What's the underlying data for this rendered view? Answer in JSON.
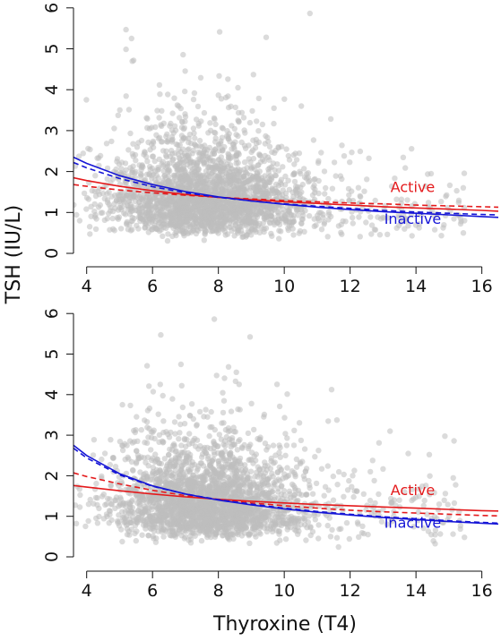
{
  "y_axis_label": "TSH (IU/L)",
  "x_axis_label": "Thyroxine (T4)",
  "chart_data": [
    {
      "type": "scatter",
      "panel": "top",
      "xlim": [
        3.6,
        16.5
      ],
      "ylim": [
        0,
        6.3
      ],
      "x_ticks": [
        "4",
        "6",
        "8",
        "10",
        "12",
        "14",
        "16"
      ],
      "y_ticks": [
        "0",
        "1",
        "2",
        "3",
        "4",
        "5",
        "6"
      ],
      "point_color": "#bdbdbd",
      "annotations": [
        {
          "text": "Active",
          "color": "#e41a1c",
          "x": 13.9,
          "y": 1.5
        },
        {
          "text": "Inactive",
          "color": "#1515d6",
          "x": 13.9,
          "y": 0.72
        }
      ],
      "series": [
        {
          "name": "Active",
          "color": "#e41a1c",
          "style": "solid",
          "x": [
            3.6,
            4,
            5,
            6,
            7,
            8,
            9,
            10,
            11,
            12,
            13,
            14,
            15,
            16,
            16.5
          ],
          "y": [
            1.85,
            1.78,
            1.64,
            1.53,
            1.44,
            1.37,
            1.31,
            1.26,
            1.22,
            1.18,
            1.14,
            1.11,
            1.08,
            1.05,
            1.03
          ]
        },
        {
          "name": "Active",
          "color": "#e41a1c",
          "style": "dashed",
          "x": [
            3.6,
            4,
            5,
            6,
            7,
            8,
            9,
            10,
            11,
            12,
            13,
            14,
            15,
            16,
            16.5
          ],
          "y": [
            1.68,
            1.64,
            1.55,
            1.48,
            1.42,
            1.37,
            1.33,
            1.29,
            1.26,
            1.23,
            1.21,
            1.18,
            1.16,
            1.14,
            1.13
          ]
        },
        {
          "name": "Inactive",
          "color": "#1515d6",
          "style": "solid",
          "x": [
            3.6,
            4,
            5,
            6,
            7,
            8,
            9,
            10,
            11,
            12,
            13,
            14,
            15,
            16,
            16.5
          ],
          "y": [
            2.35,
            2.2,
            1.9,
            1.68,
            1.51,
            1.38,
            1.28,
            1.2,
            1.13,
            1.07,
            1.02,
            0.98,
            0.94,
            0.9,
            0.88
          ]
        },
        {
          "name": "Inactive",
          "color": "#1515d6",
          "style": "dashed",
          "x": [
            3.6,
            4,
            5,
            6,
            7,
            8,
            9,
            10,
            11,
            12,
            13,
            14,
            15,
            16,
            16.5
          ],
          "y": [
            2.22,
            2.09,
            1.83,
            1.63,
            1.48,
            1.37,
            1.28,
            1.21,
            1.15,
            1.1,
            1.05,
            1.01,
            0.98,
            0.95,
            0.94
          ]
        }
      ]
    },
    {
      "type": "scatter",
      "panel": "bottom",
      "xlim": [
        3.6,
        16.5
      ],
      "ylim": [
        0,
        6.3
      ],
      "x_ticks": [
        "4",
        "6",
        "8",
        "10",
        "12",
        "14",
        "16"
      ],
      "y_ticks": [
        "0",
        "1",
        "2",
        "3",
        "4",
        "5",
        "6"
      ],
      "point_color": "#bdbdbd",
      "annotations": [
        {
          "text": "Active",
          "color": "#e41a1c",
          "x": 13.9,
          "y": 1.52
        },
        {
          "text": "Inactive",
          "color": "#1515d6",
          "x": 13.9,
          "y": 0.72
        }
      ],
      "series": [
        {
          "name": "Active",
          "color": "#e41a1c",
          "style": "solid",
          "x": [
            3.6,
            4,
            5,
            6,
            7,
            8,
            9,
            10,
            11,
            12,
            13,
            14,
            15,
            16,
            16.5
          ],
          "y": [
            1.76,
            1.72,
            1.63,
            1.55,
            1.48,
            1.42,
            1.37,
            1.33,
            1.29,
            1.26,
            1.23,
            1.2,
            1.17,
            1.14,
            1.13
          ]
        },
        {
          "name": "Active",
          "color": "#e41a1c",
          "style": "dashed",
          "x": [
            3.6,
            4,
            5,
            6,
            7,
            8,
            9,
            10,
            11,
            12,
            13,
            14,
            15,
            16,
            16.5
          ],
          "y": [
            2.07,
            1.98,
            1.8,
            1.64,
            1.51,
            1.41,
            1.33,
            1.26,
            1.2,
            1.15,
            1.11,
            1.08,
            1.05,
            1.02,
            1.01
          ]
        },
        {
          "name": "Inactive",
          "color": "#1515d6",
          "style": "solid",
          "x": [
            3.6,
            4,
            5,
            6,
            7,
            8,
            9,
            10,
            11,
            12,
            13,
            14,
            15,
            16,
            16.5
          ],
          "y": [
            2.75,
            2.5,
            2.05,
            1.75,
            1.55,
            1.4,
            1.28,
            1.18,
            1.1,
            1.03,
            0.97,
            0.92,
            0.87,
            0.83,
            0.81
          ]
        },
        {
          "name": "Inactive",
          "color": "#1515d6",
          "style": "dashed",
          "x": [
            3.6,
            4,
            5,
            6,
            7,
            8,
            9,
            10,
            11,
            12,
            13,
            14,
            15,
            16,
            16.5
          ],
          "y": [
            2.68,
            2.44,
            2.02,
            1.74,
            1.55,
            1.41,
            1.3,
            1.2,
            1.12,
            1.05,
            0.99,
            0.94,
            0.89,
            0.85,
            0.83
          ]
        }
      ]
    }
  ]
}
